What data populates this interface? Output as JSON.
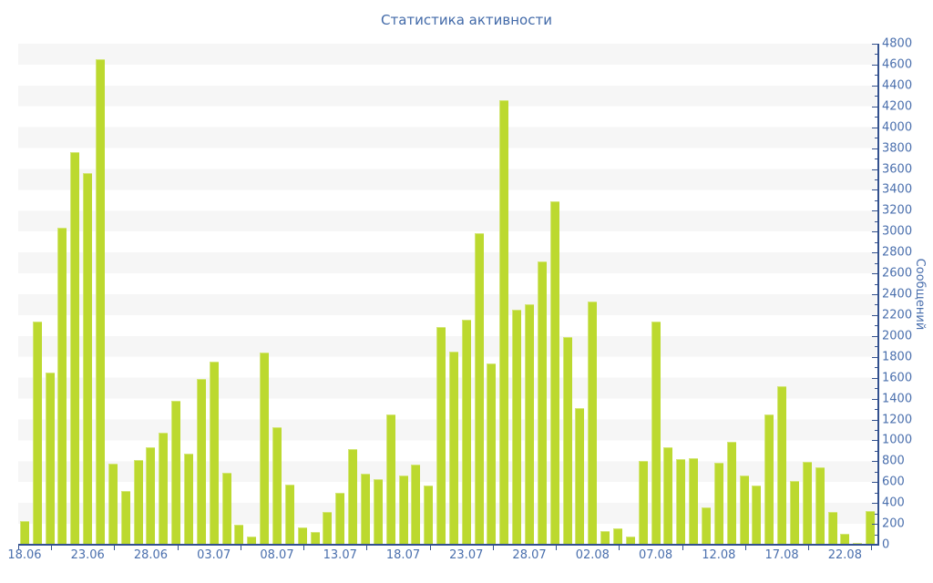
{
  "title": "Статистика активности",
  "colors": {
    "bar": "#bcd92f",
    "title_text": "#4169a8",
    "axis_text": "#4a6fad",
    "axis_line": "#32508e",
    "stripe_gray": "#f6f6f6",
    "background": "#ffffff"
  },
  "chart_data": {
    "type": "bar",
    "title": "Статистика активности",
    "ylabel": "Сообщений",
    "xlabel": "",
    "ylim": [
      0,
      4800
    ],
    "y_tick_step": 200,
    "y_minor_tick_step": 100,
    "grid": "alternating horizontal bands every 200 units",
    "legend_position": "none",
    "x": [
      "18.06",
      "19.06",
      "20.06",
      "21.06",
      "22.06",
      "23.06",
      "24.06",
      "25.06",
      "26.06",
      "27.06",
      "28.06",
      "29.06",
      "30.06",
      "01.07",
      "02.07",
      "03.07",
      "04.07",
      "05.07",
      "06.07",
      "07.07",
      "08.07",
      "09.07",
      "10.07",
      "11.07",
      "12.07",
      "13.07",
      "14.07",
      "15.07",
      "16.07",
      "17.07",
      "18.07",
      "19.07",
      "20.07",
      "21.07",
      "22.07",
      "23.07",
      "24.07",
      "25.07",
      "26.07",
      "27.07",
      "28.07",
      "29.07",
      "30.07",
      "31.07",
      "01.08",
      "02.08",
      "03.08",
      "04.08",
      "05.08",
      "06.08",
      "07.08",
      "08.08",
      "09.08",
      "10.08",
      "11.08",
      "12.08",
      "13.08",
      "14.08",
      "15.08",
      "16.08",
      "17.08",
      "18.08",
      "19.08",
      "20.08",
      "21.08",
      "22.08",
      "23.08",
      "24.08"
    ],
    "values": [
      230,
      2140,
      1650,
      3040,
      3760,
      3560,
      4650,
      775,
      515,
      815,
      930,
      1070,
      1380,
      870,
      1590,
      1750,
      690,
      190,
      80,
      1845,
      1130,
      580,
      165,
      120,
      310,
      500,
      920,
      680,
      630,
      1250,
      660,
      770,
      570,
      2090,
      1850,
      2155,
      2985,
      1740,
      4260,
      2255,
      2300,
      2710,
      3290,
      1990,
      1310,
      2330,
      130,
      160,
      75,
      800,
      2140,
      930,
      820,
      830,
      360,
      785,
      985,
      660,
      570,
      1245,
      1520,
      610,
      790,
      745,
      310,
      105,
      20,
      320
    ],
    "x_tick_labels": [
      "18.06",
      "23.06",
      "28.06",
      "03.07",
      "08.07",
      "13.07",
      "18.07",
      "23.07",
      "28.07",
      "02.08",
      "07.08",
      "12.08",
      "17.08",
      "22.08"
    ],
    "x_tick_every": 5,
    "y_tick_labels": [
      "0",
      "200",
      "400",
      "600",
      "800",
      "1000",
      "1200",
      "1400",
      "1600",
      "1800",
      "2000",
      "2200",
      "2400",
      "2600",
      "2800",
      "3000",
      "3200",
      "3400",
      "3600",
      "3800",
      "4000",
      "4200",
      "4400",
      "4600",
      "4800"
    ]
  }
}
